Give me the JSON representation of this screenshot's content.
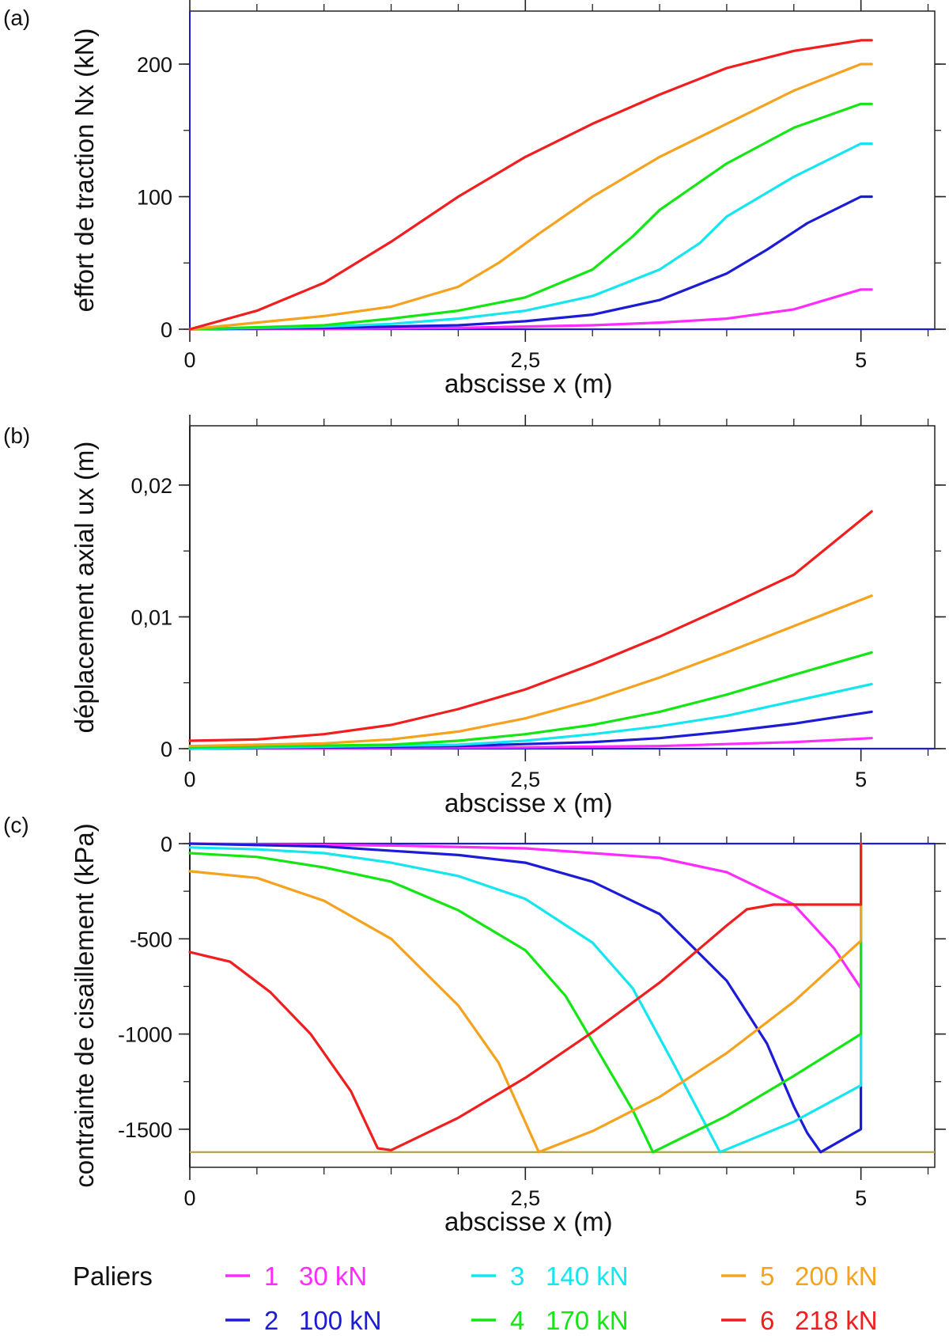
{
  "legend": {
    "title": "Paliers",
    "entries": [
      {
        "id": "1",
        "label": "1",
        "load": "30 kN",
        "color": "#ff2bff"
      },
      {
        "id": "2",
        "label": "2",
        "load": "100 kN",
        "color": "#1c1cd6"
      },
      {
        "id": "3",
        "label": "3",
        "load": "140 kN",
        "color": "#14e6f0"
      },
      {
        "id": "4",
        "label": "4",
        "load": "170 kN",
        "color": "#14e614"
      },
      {
        "id": "5",
        "label": "5",
        "load": "200 kN",
        "color": "#f5a21e"
      },
      {
        "id": "6",
        "label": "6",
        "load": "218 kN",
        "color": "#f01e1e"
      }
    ]
  },
  "chart_data": [
    {
      "panel": "(a)",
      "type": "line",
      "xlabel": "abscisse x (m)",
      "ylabel": "effort de traction  Nx (kN)",
      "xlim": [
        0,
        5.55
      ],
      "ylim": [
        0,
        240
      ],
      "xticks": [
        {
          "v": 0,
          "label": "0"
        },
        {
          "v": 2.5,
          "label": "2,5"
        },
        {
          "v": 5,
          "label": "5"
        }
      ],
      "yticks": [
        {
          "v": 0,
          "label": "0"
        },
        {
          "v": 100,
          "label": "100"
        },
        {
          "v": 200,
          "label": "200"
        }
      ],
      "baselines": [
        {
          "y": 0,
          "color": "#1c1cd6"
        }
      ],
      "series": [
        {
          "id": "1",
          "points": [
            [
              0,
              0
            ],
            [
              1,
              0.3
            ],
            [
              2,
              1
            ],
            [
              3,
              3
            ],
            [
              3.5,
              5
            ],
            [
              4,
              8
            ],
            [
              4.5,
              15
            ],
            [
              4.8,
              24
            ],
            [
              5,
              30
            ],
            [
              5.08,
              30
            ]
          ]
        },
        {
          "id": "2",
          "points": [
            [
              0,
              0
            ],
            [
              1,
              1
            ],
            [
              2,
              3
            ],
            [
              2.5,
              6
            ],
            [
              3,
              11
            ],
            [
              3.5,
              22
            ],
            [
              4,
              42
            ],
            [
              4.3,
              60
            ],
            [
              4.6,
              80
            ],
            [
              5,
              100
            ],
            [
              5.08,
              100
            ]
          ]
        },
        {
          "id": "3",
          "points": [
            [
              0,
              0
            ],
            [
              1,
              2
            ],
            [
              1.5,
              4
            ],
            [
              2,
              8
            ],
            [
              2.5,
              14
            ],
            [
              3,
              25
            ],
            [
              3.5,
              45
            ],
            [
              3.8,
              65
            ],
            [
              4,
              85
            ],
            [
              4.5,
              115
            ],
            [
              5,
              140
            ],
            [
              5.08,
              140
            ]
          ]
        },
        {
          "id": "4",
          "points": [
            [
              0,
              0
            ],
            [
              1,
              3
            ],
            [
              1.5,
              8
            ],
            [
              2,
              14
            ],
            [
              2.5,
              24
            ],
            [
              3,
              45
            ],
            [
              3.3,
              70
            ],
            [
              3.5,
              90
            ],
            [
              4,
              125
            ],
            [
              4.5,
              152
            ],
            [
              5,
              170
            ],
            [
              5.08,
              170
            ]
          ]
        },
        {
          "id": "5",
          "points": [
            [
              0,
              0
            ],
            [
              0.5,
              5
            ],
            [
              1,
              10
            ],
            [
              1.5,
              17
            ],
            [
              2,
              32
            ],
            [
              2.3,
              50
            ],
            [
              2.6,
              72
            ],
            [
              3,
              100
            ],
            [
              3.5,
              130
            ],
            [
              4,
              155
            ],
            [
              4.5,
              180
            ],
            [
              5,
              200
            ],
            [
              5.08,
              200
            ]
          ]
        },
        {
          "id": "6",
          "points": [
            [
              0,
              0
            ],
            [
              0.5,
              14
            ],
            [
              1,
              35
            ],
            [
              1.5,
              66
            ],
            [
              2,
              100
            ],
            [
              2.5,
              130
            ],
            [
              3,
              155
            ],
            [
              3.5,
              177
            ],
            [
              4,
              197
            ],
            [
              4.5,
              210
            ],
            [
              5,
              218
            ],
            [
              5.08,
              218
            ]
          ]
        }
      ]
    },
    {
      "panel": "(b)",
      "type": "line",
      "xlabel": "abscisse x (m)",
      "ylabel": "déplacement axial ux (m)",
      "xlim": [
        0,
        5.55
      ],
      "ylim": [
        0,
        0.0245
      ],
      "xticks": [
        {
          "v": 0,
          "label": "0"
        },
        {
          "v": 2.5,
          "label": "2,5"
        },
        {
          "v": 5,
          "label": "5"
        }
      ],
      "yticks": [
        {
          "v": 0,
          "label": "0"
        },
        {
          "v": 0.01,
          "label": "0,01"
        },
        {
          "v": 0.02,
          "label": "0,02"
        }
      ],
      "baselines": [
        {
          "y": 0,
          "color": "#1c1cd6"
        }
      ],
      "series": [
        {
          "id": "1",
          "points": [
            [
              0,
              0
            ],
            [
              2.5,
              0.0001
            ],
            [
              3.5,
              0.0002
            ],
            [
              4.5,
              0.0005
            ],
            [
              5.08,
              0.0008
            ]
          ]
        },
        {
          "id": "2",
          "points": [
            [
              0,
              0
            ],
            [
              2,
              0.0002
            ],
            [
              3,
              0.0005
            ],
            [
              3.5,
              0.0008
            ],
            [
              4,
              0.0013
            ],
            [
              4.5,
              0.0019
            ],
            [
              5.08,
              0.0028
            ]
          ]
        },
        {
          "id": "3",
          "points": [
            [
              0,
              0
            ],
            [
              2,
              0.0003
            ],
            [
              2.5,
              0.0006
            ],
            [
              3,
              0.0011
            ],
            [
              3.5,
              0.0017
            ],
            [
              4,
              0.0025
            ],
            [
              4.5,
              0.0036
            ],
            [
              5.08,
              0.0049
            ]
          ]
        },
        {
          "id": "4",
          "points": [
            [
              0,
              0.0001
            ],
            [
              1.5,
              0.0003
            ],
            [
              2,
              0.0006
            ],
            [
              2.5,
              0.0011
            ],
            [
              3,
              0.0018
            ],
            [
              3.5,
              0.0028
            ],
            [
              4,
              0.0041
            ],
            [
              4.5,
              0.0056
            ],
            [
              5.08,
              0.0073
            ]
          ]
        },
        {
          "id": "5",
          "points": [
            [
              0,
              0.0002
            ],
            [
              1,
              0.0004
            ],
            [
              1.5,
              0.0007
            ],
            [
              2,
              0.0013
            ],
            [
              2.5,
              0.0023
            ],
            [
              3,
              0.0037
            ],
            [
              3.5,
              0.0054
            ],
            [
              4,
              0.0073
            ],
            [
              4.5,
              0.0093
            ],
            [
              5.08,
              0.0116
            ]
          ]
        },
        {
          "id": "6",
          "points": [
            [
              0,
              0.0006
            ],
            [
              0.5,
              0.0007
            ],
            [
              1,
              0.0011
            ],
            [
              1.5,
              0.0018
            ],
            [
              2,
              0.003
            ],
            [
              2.5,
              0.0045
            ],
            [
              3,
              0.0064
            ],
            [
              3.5,
              0.0085
            ],
            [
              4,
              0.0108
            ],
            [
              4.5,
              0.0132
            ],
            [
              5.08,
              0.018
            ]
          ]
        }
      ]
    },
    {
      "panel": "(c)",
      "type": "line",
      "xlabel": "abscisse x (m)",
      "ylabel": "contrainte de cisaillement (kPa)",
      "xlim": [
        0,
        5.55
      ],
      "ylim": [
        -1700,
        0
      ],
      "xticks": [
        {
          "v": 0,
          "label": "0"
        },
        {
          "v": 2.5,
          "label": "2,5"
        },
        {
          "v": 5,
          "label": "5"
        }
      ],
      "yticks": [
        {
          "v": 0,
          "label": "0"
        },
        {
          "v": -500,
          "label": "-500"
        },
        {
          "v": -1000,
          "label": "-1000"
        },
        {
          "v": -1500,
          "label": "-1500"
        }
      ],
      "baselines": [
        {
          "y": 0,
          "color": "#1c1cd6"
        },
        {
          "y": -1620,
          "color": "#b7a24a"
        }
      ],
      "series": [
        {
          "id": "1",
          "points": [
            [
              0,
              0
            ],
            [
              1.5,
              -10
            ],
            [
              2.5,
              -25
            ],
            [
              3.5,
              -75
            ],
            [
              4,
              -150
            ],
            [
              4.5,
              -320
            ],
            [
              4.8,
              -550
            ],
            [
              5,
              -760
            ]
          ]
        },
        {
          "id": "2",
          "points": [
            [
              0,
              0
            ],
            [
              1,
              -15
            ],
            [
              2,
              -60
            ],
            [
              2.5,
              -100
            ],
            [
              3,
              -200
            ],
            [
              3.5,
              -370
            ],
            [
              4,
              -720
            ],
            [
              4.3,
              -1050
            ],
            [
              4.5,
              -1380
            ],
            [
              4.6,
              -1520
            ],
            [
              4.7,
              -1620
            ],
            [
              5,
              -1500
            ],
            [
              5,
              0
            ]
          ]
        },
        {
          "id": "3",
          "points": [
            [
              0,
              -20
            ],
            [
              0.5,
              -30
            ],
            [
              1,
              -50
            ],
            [
              1.5,
              -100
            ],
            [
              2,
              -170
            ],
            [
              2.5,
              -290
            ],
            [
              3,
              -520
            ],
            [
              3.3,
              -760
            ],
            [
              3.6,
              -1150
            ],
            [
              3.95,
              -1620
            ],
            [
              4.5,
              -1460
            ],
            [
              5,
              -1270
            ],
            [
              5,
              0
            ]
          ]
        },
        {
          "id": "4",
          "points": [
            [
              0,
              -50
            ],
            [
              0.5,
              -70
            ],
            [
              1,
              -125
            ],
            [
              1.5,
              -200
            ],
            [
              2,
              -350
            ],
            [
              2.5,
              -560
            ],
            [
              2.8,
              -800
            ],
            [
              3.05,
              -1100
            ],
            [
              3.3,
              -1400
            ],
            [
              3.45,
              -1620
            ],
            [
              4,
              -1430
            ],
            [
              4.5,
              -1220
            ],
            [
              5,
              -1000
            ],
            [
              5,
              0
            ]
          ]
        },
        {
          "id": "5",
          "points": [
            [
              0,
              -145
            ],
            [
              0.5,
              -180
            ],
            [
              1,
              -300
            ],
            [
              1.5,
              -500
            ],
            [
              2,
              -850
            ],
            [
              2.3,
              -1150
            ],
            [
              2.6,
              -1620
            ],
            [
              3,
              -1510
            ],
            [
              3.5,
              -1330
            ],
            [
              4,
              -1100
            ],
            [
              4.5,
              -830
            ],
            [
              5,
              -510
            ],
            [
              5,
              0
            ]
          ]
        },
        {
          "id": "6",
          "points": [
            [
              0,
              -570
            ],
            [
              0.3,
              -620
            ],
            [
              0.6,
              -780
            ],
            [
              0.9,
              -1000
            ],
            [
              1.2,
              -1300
            ],
            [
              1.4,
              -1600
            ],
            [
              1.5,
              -1610
            ],
            [
              2,
              -1440
            ],
            [
              2.5,
              -1230
            ],
            [
              3,
              -990
            ],
            [
              3.5,
              -730
            ],
            [
              4,
              -430
            ],
            [
              4.15,
              -345
            ],
            [
              4.35,
              -320
            ],
            [
              5,
              -320
            ],
            [
              5,
              0
            ]
          ]
        }
      ]
    }
  ]
}
